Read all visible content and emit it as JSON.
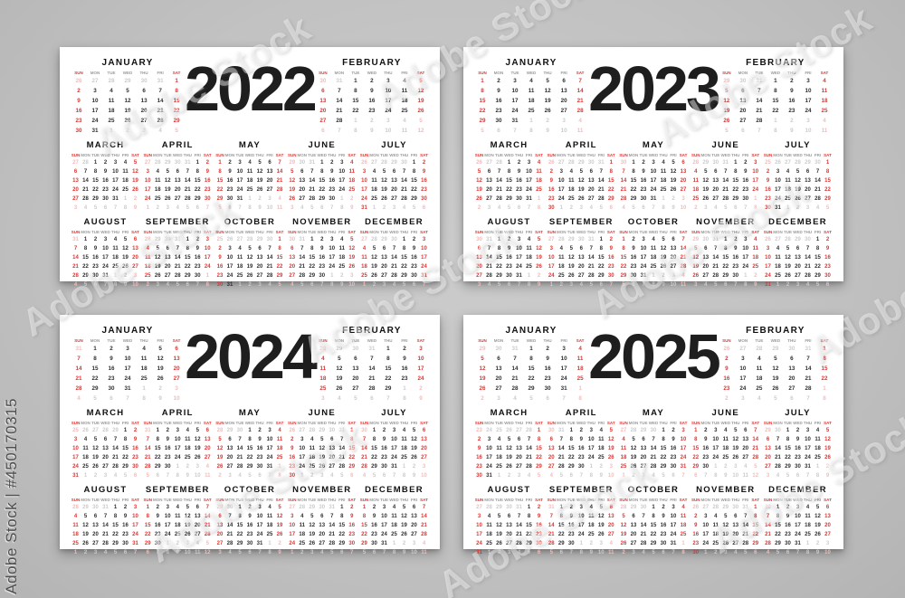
{
  "calendars": {
    "years": [
      2022,
      2023,
      2024,
      2025
    ]
  },
  "month_names": [
    "JANUARY",
    "FEBRUARY",
    "MARCH",
    "APRIL",
    "MAY",
    "JUNE",
    "JULY",
    "AUGUST",
    "SEPTEMBER",
    "OCTOBER",
    "NOVEMBER",
    "DECEMBER"
  ],
  "weekday_abbr": [
    "SUN",
    "MON",
    "TUE",
    "WED",
    "THU",
    "FRI",
    "SAT"
  ],
  "watermark": {
    "side_label": "Adobe Stock | #450170315",
    "tile_text": "Adobe Stock"
  },
  "colors": {
    "accent_red": "#e03432",
    "day": "#2e2e2e",
    "muted_day": "#cccccc",
    "muted_red": "#f1bdbd",
    "header_gray": "#9b9b9b",
    "title": "#101010",
    "year": "#1e1e1e",
    "card_bg": "#ffffff",
    "page_bg": "#c2c2c2"
  }
}
